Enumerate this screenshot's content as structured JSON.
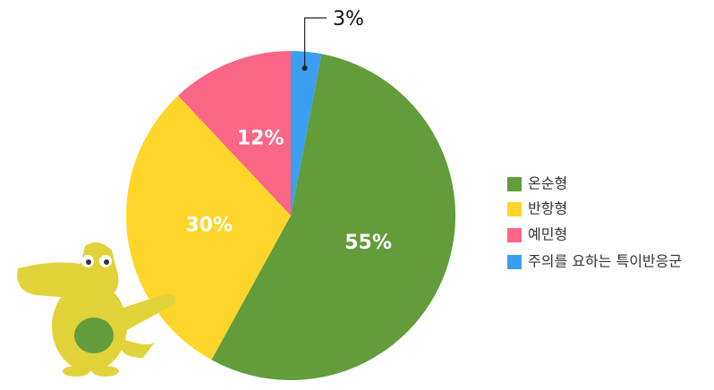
{
  "chart_data": {
    "type": "pie",
    "categories": [
      "온순형",
      "반항형",
      "예민형",
      "주의를 요하는 특이반응군"
    ],
    "values": [
      55,
      30,
      12,
      3
    ],
    "value_labels": [
      "55%",
      "30%",
      "12%",
      "3%"
    ],
    "colors": [
      "#629c3b",
      "#fed52a",
      "#f96686",
      "#3b9ef0"
    ],
    "legend": "right"
  }
}
